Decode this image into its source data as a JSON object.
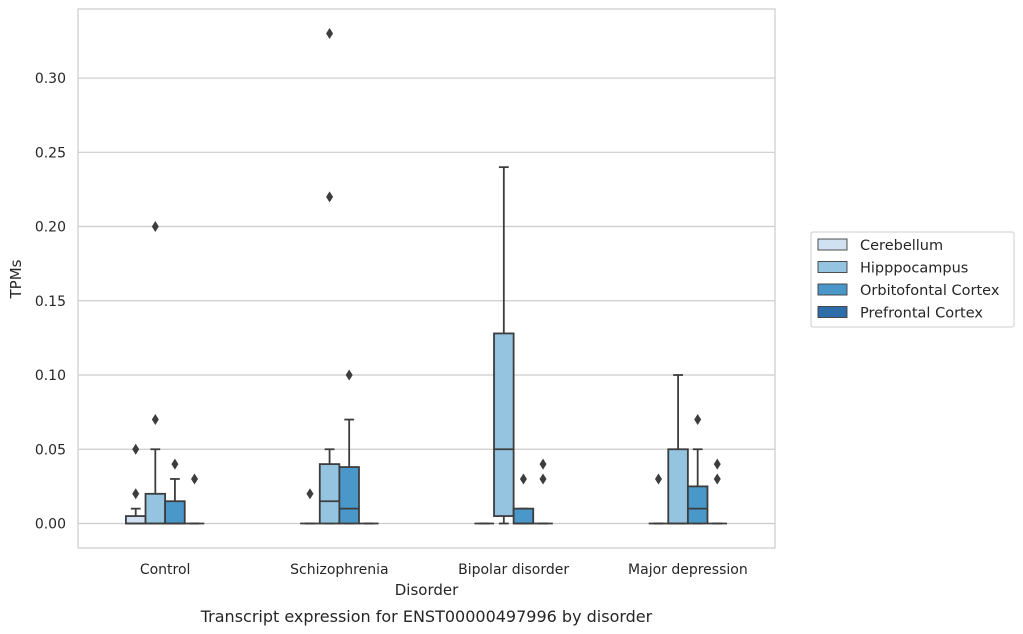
{
  "chart_data": {
    "type": "box",
    "xlabel": "Disorder",
    "ylabel": "TPMs",
    "caption": "Transcript expression for ENST00000497996 by disorder",
    "ylim": [
      -0.0165,
      0.3465
    ],
    "yticks": [
      "0.00",
      "0.05",
      "0.10",
      "0.15",
      "0.20",
      "0.25",
      "0.30"
    ],
    "grid": "horizontal",
    "legend_placement": "right",
    "categories": [
      "Control",
      "Schizophrenia",
      "Bipolar disorder",
      "Major depression"
    ],
    "series": [
      {
        "name": "Cerebellum",
        "color": "#d0e1f2",
        "boxes": [
          {
            "category": "Control",
            "whisker_low": 0.0,
            "q1": 0.0,
            "median": 0.0,
            "q3": 0.005,
            "whisker_high": 0.01,
            "outliers": [
              0.02,
              0.05
            ]
          },
          {
            "category": "Schizophrenia",
            "whisker_low": 0.0,
            "q1": 0.0,
            "median": 0.0,
            "q3": 0.0,
            "whisker_high": 0.0,
            "outliers": [
              0.02
            ]
          },
          {
            "category": "Bipolar disorder",
            "whisker_low": 0.0,
            "q1": 0.0,
            "median": 0.0,
            "q3": 0.0,
            "whisker_high": 0.0,
            "outliers": []
          },
          {
            "category": "Major depression",
            "whisker_low": 0.0,
            "q1": 0.0,
            "median": 0.0,
            "q3": 0.0,
            "whisker_high": 0.0,
            "outliers": [
              0.03
            ]
          }
        ]
      },
      {
        "name": "Hipppocampus",
        "color": "#94c4df",
        "boxes": [
          {
            "category": "Control",
            "whisker_low": 0.0,
            "q1": 0.0,
            "median": 0.0,
            "q3": 0.02,
            "whisker_high": 0.05,
            "outliers": [
              0.07,
              0.2
            ]
          },
          {
            "category": "Schizophrenia",
            "whisker_low": 0.0,
            "q1": 0.0,
            "median": 0.015,
            "q3": 0.04,
            "whisker_high": 0.05,
            "outliers": [
              0.22,
              0.33
            ]
          },
          {
            "category": "Bipolar disorder",
            "whisker_low": 0.0,
            "q1": 0.005,
            "median": 0.05,
            "q3": 0.128,
            "whisker_high": 0.24,
            "outliers": []
          },
          {
            "category": "Major depression",
            "whisker_low": 0.0,
            "q1": 0.0,
            "median": 0.0,
            "q3": 0.05,
            "whisker_high": 0.1,
            "outliers": []
          }
        ]
      },
      {
        "name": "Orbitofontal Cortex",
        "color": "#4a98c9",
        "boxes": [
          {
            "category": "Control",
            "whisker_low": 0.0,
            "q1": 0.0,
            "median": 0.0,
            "q3": 0.015,
            "whisker_high": 0.03,
            "outliers": [
              0.04
            ]
          },
          {
            "category": "Schizophrenia",
            "whisker_low": 0.0,
            "q1": 0.0,
            "median": 0.01,
            "q3": 0.038,
            "whisker_high": 0.07,
            "outliers": [
              0.1
            ]
          },
          {
            "category": "Bipolar disorder",
            "whisker_low": 0.0,
            "q1": 0.0,
            "median": 0.0,
            "q3": 0.01,
            "whisker_high": 0.01,
            "outliers": [
              0.03
            ]
          },
          {
            "category": "Major depression",
            "whisker_low": 0.0,
            "q1": 0.0,
            "median": 0.01,
            "q3": 0.025,
            "whisker_high": 0.05,
            "outliers": [
              0.07
            ]
          }
        ]
      },
      {
        "name": "Prefrontal Cortex",
        "color": "#2d6ea8",
        "boxes": [
          {
            "category": "Control",
            "whisker_low": 0.0,
            "q1": 0.0,
            "median": 0.0,
            "q3": 0.0,
            "whisker_high": 0.0,
            "outliers": [
              0.03
            ]
          },
          {
            "category": "Schizophrenia",
            "whisker_low": 0.0,
            "q1": 0.0,
            "median": 0.0,
            "q3": 0.0,
            "whisker_high": 0.0,
            "outliers": []
          },
          {
            "category": "Bipolar disorder",
            "whisker_low": 0.0,
            "q1": 0.0,
            "median": 0.0,
            "q3": 0.0,
            "whisker_high": 0.0,
            "outliers": [
              0.03,
              0.04
            ]
          },
          {
            "category": "Major depression",
            "whisker_low": 0.0,
            "q1": 0.0,
            "median": 0.0,
            "q3": 0.0,
            "whisker_high": 0.0,
            "outliers": [
              0.03,
              0.04
            ]
          }
        ]
      }
    ]
  }
}
